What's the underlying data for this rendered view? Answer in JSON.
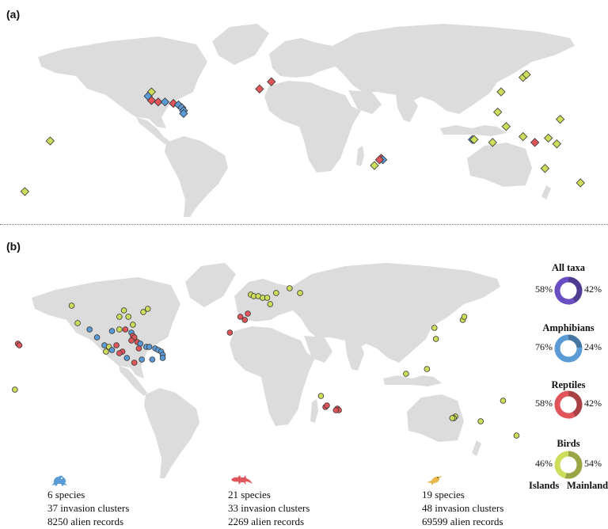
{
  "panels": {
    "a": {
      "label": "(a)"
    },
    "b": {
      "label": "(b)"
    }
  },
  "colors": {
    "land": "#dcdcdc",
    "amphibians": "#5b9bd5",
    "reptiles": "#e0555a",
    "birds": "#cddc5a",
    "all_taxa": "#6a4fc4",
    "marker_stroke": "#333333"
  },
  "legend": {
    "all_taxa": {
      "title": "All taxa",
      "islands_pct": "58%",
      "mainland_pct": "42%",
      "islands_fraction": 0.58
    },
    "amphibians": {
      "title": "Amphibians",
      "islands_pct": "76%",
      "mainland_pct": "24%",
      "islands_fraction": 0.76
    },
    "reptiles": {
      "title": "Reptiles",
      "islands_pct": "58%",
      "mainland_pct": "42%",
      "islands_fraction": 0.58
    },
    "birds": {
      "title": "Birds",
      "islands_pct": "46%",
      "mainland_pct": "54%",
      "islands_fraction": 0.46
    },
    "islands_label": "Islands",
    "mainland_label": "Mainland"
  },
  "summary": {
    "amphibians": {
      "icon": "frog-icon",
      "species": "6 species",
      "clusters": "37 invasion clusters",
      "records": "8250 alien records"
    },
    "reptiles": {
      "icon": "lizard-icon",
      "species": "21 species",
      "clusters": "33 invasion clusters",
      "records": "2269 alien records"
    },
    "birds": {
      "icon": "bird-icon",
      "species": "19 species",
      "clusters": "48 invasion clusters",
      "records": "69599 alien records"
    }
  },
  "map_a_points": [
    {
      "lon": -140,
      "lat": -8,
      "taxon": "birds"
    },
    {
      "lon": -155,
      "lat": -43,
      "taxon": "birds"
    },
    {
      "lon": -80,
      "lat": 26,
      "taxon": "birds"
    },
    {
      "lon": -82,
      "lat": 23,
      "taxon": "amphibians"
    },
    {
      "lon": -80,
      "lat": 20,
      "taxon": "reptiles"
    },
    {
      "lon": -76,
      "lat": 19,
      "taxon": "reptiles"
    },
    {
      "lon": -72,
      "lat": 19,
      "taxon": "amphibians"
    },
    {
      "lon": -67,
      "lat": 18,
      "taxon": "reptiles"
    },
    {
      "lon": -64,
      "lat": 17,
      "taxon": "amphibians"
    },
    {
      "lon": -62,
      "lat": 15,
      "taxon": "amphibians"
    },
    {
      "lon": -61,
      "lat": 13,
      "taxon": "amphibians"
    },
    {
      "lon": -61,
      "lat": 11,
      "taxon": "amphibians"
    },
    {
      "lon": -16,
      "lat": 28,
      "taxon": "reptiles"
    },
    {
      "lon": -9,
      "lat": 33,
      "taxon": "reptiles"
    },
    {
      "lon": 56,
      "lat": -20,
      "taxon": "reptiles"
    },
    {
      "lon": 57,
      "lat": -21,
      "taxon": "amphibians"
    },
    {
      "lon": 55,
      "lat": -21,
      "taxon": "reptiles"
    },
    {
      "lon": 52,
      "lat": -25,
      "taxon": "birds"
    },
    {
      "lon": 140,
      "lat": 36,
      "taxon": "birds"
    },
    {
      "lon": 142,
      "lat": 38,
      "taxon": "birds"
    },
    {
      "lon": 127,
      "lat": 26,
      "taxon": "birds"
    },
    {
      "lon": 162,
      "lat": 7,
      "taxon": "birds"
    },
    {
      "lon": 125,
      "lat": 12,
      "taxon": "birds"
    },
    {
      "lon": 130,
      "lat": 2,
      "taxon": "birds"
    },
    {
      "lon": 110,
      "lat": -7,
      "taxon": "amphibians"
    },
    {
      "lon": 111,
      "lat": -7,
      "taxon": "birds"
    },
    {
      "lon": 122,
      "lat": -9,
      "taxon": "birds"
    },
    {
      "lon": 140,
      "lat": -5,
      "taxon": "birds"
    },
    {
      "lon": 147,
      "lat": -9,
      "taxon": "reptiles"
    },
    {
      "lon": 155,
      "lat": -6,
      "taxon": "birds"
    },
    {
      "lon": 160,
      "lat": -10,
      "taxon": "birds"
    },
    {
      "lon": 153,
      "lat": -27,
      "taxon": "birds"
    },
    {
      "lon": 174,
      "lat": -37,
      "taxon": "birds"
    }
  ],
  "map_b_points": [
    {
      "lon": -158,
      "lat": 21,
      "taxon": "reptiles"
    },
    {
      "lon": -157,
      "lat": 20,
      "taxon": "reptiles"
    },
    {
      "lon": -160,
      "lat": -8,
      "taxon": "birds"
    },
    {
      "lon": -122,
      "lat": 45,
      "taxon": "birds"
    },
    {
      "lon": -118,
      "lat": 34,
      "taxon": "birds"
    },
    {
      "lon": -110,
      "lat": 30,
      "taxon": "amphibians"
    },
    {
      "lon": -105,
      "lat": 25,
      "taxon": "amphibians"
    },
    {
      "lon": -100,
      "lat": 20,
      "taxon": "amphibians"
    },
    {
      "lon": -97,
      "lat": 19,
      "taxon": "birds"
    },
    {
      "lon": -99,
      "lat": 16,
      "taxon": "birds"
    },
    {
      "lon": -90,
      "lat": 38,
      "taxon": "birds"
    },
    {
      "lon": -87,
      "lat": 42,
      "taxon": "birds"
    },
    {
      "lon": -84,
      "lat": 38,
      "taxon": "birds"
    },
    {
      "lon": -81,
      "lat": 33,
      "taxon": "birds"
    },
    {
      "lon": -74,
      "lat": 41,
      "taxon": "birds"
    },
    {
      "lon": -71,
      "lat": 43,
      "taxon": "birds"
    },
    {
      "lon": -95,
      "lat": 29,
      "taxon": "amphibians"
    },
    {
      "lon": -90,
      "lat": 30,
      "taxon": "birds"
    },
    {
      "lon": -86,
      "lat": 30,
      "taxon": "reptiles"
    },
    {
      "lon": -82,
      "lat": 28,
      "taxon": "amphibians"
    },
    {
      "lon": -81,
      "lat": 26,
      "taxon": "reptiles"
    },
    {
      "lon": -80,
      "lat": 25,
      "taxon": "reptiles"
    },
    {
      "lon": -82,
      "lat": 23,
      "taxon": "reptiles"
    },
    {
      "lon": -78,
      "lat": 22,
      "taxon": "reptiles"
    },
    {
      "lon": -76,
      "lat": 21,
      "taxon": "amphibians"
    },
    {
      "lon": -77,
      "lat": 18,
      "taxon": "reptiles"
    },
    {
      "lon": -72,
      "lat": 19,
      "taxon": "amphibians"
    },
    {
      "lon": -70,
      "lat": 19,
      "taxon": "amphibians"
    },
    {
      "lon": -66,
      "lat": 18,
      "taxon": "amphibians"
    },
    {
      "lon": -64,
      "lat": 17,
      "taxon": "amphibians"
    },
    {
      "lon": -62,
      "lat": 16,
      "taxon": "amphibians"
    },
    {
      "lon": -61,
      "lat": 14,
      "taxon": "amphibians"
    },
    {
      "lon": -61,
      "lat": 12,
      "taxon": "amphibians"
    },
    {
      "lon": -88,
      "lat": 16,
      "taxon": "reptiles"
    },
    {
      "lon": -90,
      "lat": 15,
      "taxon": "reptiles"
    },
    {
      "lon": -85,
      "lat": 12,
      "taxon": "amphibians"
    },
    {
      "lon": -80,
      "lat": 9,
      "taxon": "reptiles"
    },
    {
      "lon": -75,
      "lat": 11,
      "taxon": "amphibians"
    },
    {
      "lon": -68,
      "lat": 11,
      "taxon": "amphibians"
    },
    {
      "lon": -95,
      "lat": 17,
      "taxon": "amphibians"
    },
    {
      "lon": -92,
      "lat": 20,
      "taxon": "reptiles"
    },
    {
      "lon": -16,
      "lat": 28,
      "taxon": "reptiles"
    },
    {
      "lon": -9,
      "lat": 38,
      "taxon": "reptiles"
    },
    {
      "lon": -4,
      "lat": 40,
      "taxon": "reptiles"
    },
    {
      "lon": -2,
      "lat": 52,
      "taxon": "birds"
    },
    {
      "lon": 0,
      "lat": 51,
      "taxon": "birds"
    },
    {
      "lon": 3,
      "lat": 51,
      "taxon": "birds"
    },
    {
      "lon": 6,
      "lat": 50,
      "taxon": "birds"
    },
    {
      "lon": 9,
      "lat": 50,
      "taxon": "birds"
    },
    {
      "lon": 11,
      "lat": 46,
      "taxon": "birds"
    },
    {
      "lon": 15,
      "lat": 53,
      "taxon": "birds"
    },
    {
      "lon": 24,
      "lat": 56,
      "taxon": "birds"
    },
    {
      "lon": 31,
      "lat": 53,
      "taxon": "birds"
    },
    {
      "lon": -6,
      "lat": 36,
      "taxon": "reptiles"
    },
    {
      "lon": 121,
      "lat": 31,
      "taxon": "birds"
    },
    {
      "lon": 122,
      "lat": 24,
      "taxon": "birds"
    },
    {
      "lon": 140,
      "lat": 36,
      "taxon": "birds"
    },
    {
      "lon": 141,
      "lat": 38,
      "taxon": "birds"
    },
    {
      "lon": 116,
      "lat": 5,
      "taxon": "birds"
    },
    {
      "lon": 102,
      "lat": 2,
      "taxon": "birds"
    },
    {
      "lon": 56,
      "lat": -20,
      "taxon": "reptiles"
    },
    {
      "lon": 57,
      "lat": -21,
      "taxon": "reptiles"
    },
    {
      "lon": 55,
      "lat": -21,
      "taxon": "reptiles"
    },
    {
      "lon": 48,
      "lat": -19,
      "taxon": "reptiles"
    },
    {
      "lon": 49,
      "lat": -18,
      "taxon": "reptiles"
    },
    {
      "lon": 45,
      "lat": -12,
      "taxon": "birds"
    },
    {
      "lon": 135,
      "lat": -25,
      "taxon": "birds"
    },
    {
      "lon": 134,
      "lat": -26,
      "taxon": "birds"
    },
    {
      "lon": 133,
      "lat": -26,
      "taxon": "birds"
    },
    {
      "lon": 152,
      "lat": -28,
      "taxon": "birds"
    },
    {
      "lon": 176,
      "lat": -37,
      "taxon": "birds"
    },
    {
      "lon": 167,
      "lat": -15,
      "taxon": "birds"
    }
  ]
}
